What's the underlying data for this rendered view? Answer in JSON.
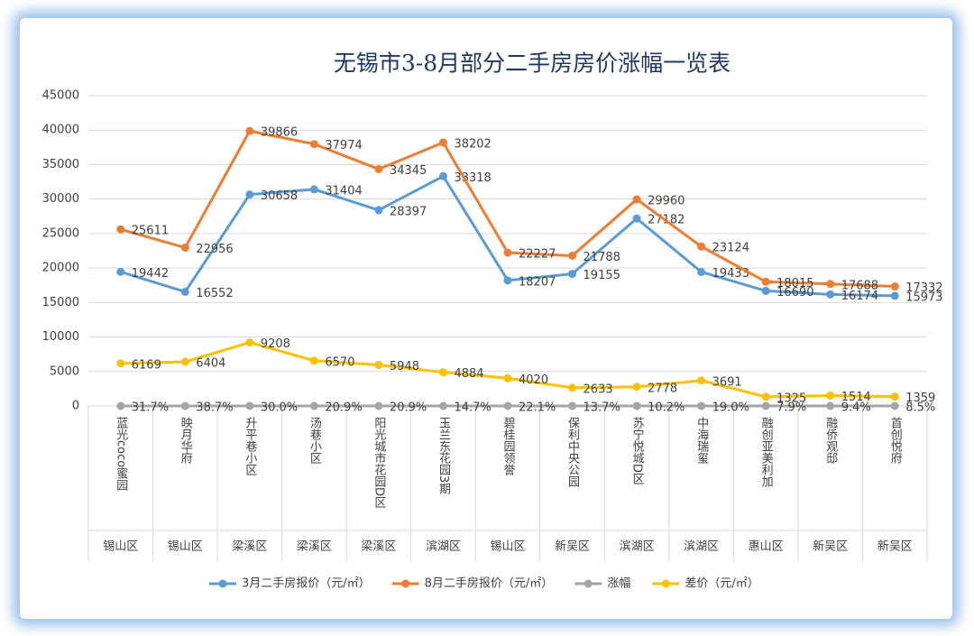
{
  "chart_data": {
    "type": "line",
    "title": "无锡市3-8月部分二手房房价涨幅一览表",
    "categories": [
      "蓝光coco蜜园",
      "映月华府",
      "升平巷小区",
      "汤巷小区",
      "阳光城市花园D区",
      "玉兰东花园3期",
      "碧桂园领誉",
      "保利中央公园",
      "苏宁悦城D区",
      "中海瑞玺",
      "融创亚美利加",
      "融侨观邸",
      "首创悦府"
    ],
    "districts": [
      "锡山区",
      "锡山区",
      "梁溪区",
      "梁溪区",
      "梁溪区",
      "滨湖区",
      "锡山区",
      "新吴区",
      "滨湖区",
      "滨湖区",
      "惠山区",
      "新吴区",
      "新吴区"
    ],
    "series": [
      {
        "name": "3月二手房报价（元/㎡）",
        "color": "#5b9bd5",
        "values": [
          19442,
          16552,
          30658,
          31404,
          28397,
          33318,
          18207,
          19155,
          27182,
          19433,
          16690,
          16174,
          15973
        ]
      },
      {
        "name": "8月二手房报价（元/㎡）",
        "color": "#ed7d31",
        "values": [
          25611,
          22956,
          39866,
          37974,
          34345,
          38202,
          22227,
          21788,
          29960,
          23124,
          18015,
          17688,
          17332
        ]
      },
      {
        "name": "涨幅",
        "color": "#a5a5a5",
        "values": [
          0.317,
          0.387,
          0.3,
          0.209,
          0.209,
          0.147,
          0.221,
          0.137,
          0.102,
          0.19,
          0.079,
          0.094,
          0.085
        ],
        "value_labels": [
          "31.7%",
          "38.7%",
          "30.0%",
          "20.9%",
          "20.9%",
          "14.7%",
          "22.1%",
          "13.7%",
          "10.2%",
          "19.0%",
          "7.9%",
          "9.4%",
          "8.5%"
        ]
      },
      {
        "name": "差价（元/㎡）",
        "color": "#ffc000",
        "values": [
          6169,
          6404,
          9208,
          6570,
          5948,
          4884,
          4020,
          2633,
          2778,
          3691,
          1325,
          1514,
          1359
        ]
      }
    ],
    "ylim": [
      0,
      45000
    ],
    "yticks": [
      0,
      5000,
      10000,
      15000,
      20000,
      25000,
      30000,
      35000,
      40000,
      45000
    ],
    "grid": true,
    "legend": "bottom"
  }
}
